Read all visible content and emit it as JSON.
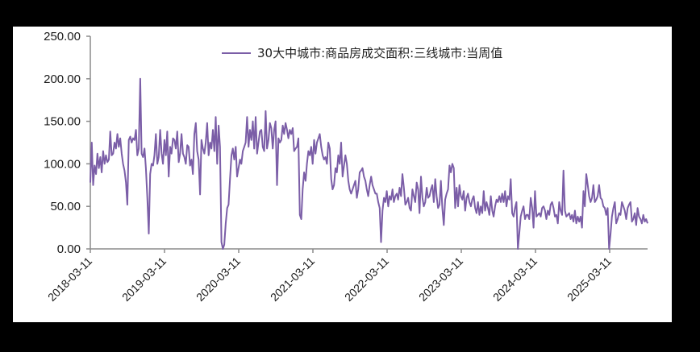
{
  "chart_data": {
    "type": "line",
    "title": "",
    "xlabel": "",
    "ylabel": "",
    "ylim": [
      0,
      250
    ],
    "y_ticks": [
      "0.00",
      "50.00",
      "100.00",
      "150.00",
      "200.00",
      "250.00"
    ],
    "x_ticks": [
      "2018-03-11",
      "2019-03-11",
      "2020-03-11",
      "2021-03-11",
      "2022-03-11",
      "2023-03-11",
      "2024-03-11",
      "2025-03-11"
    ],
    "grid": false,
    "legend_position": "top-inside",
    "series": [
      {
        "name": "30大中城市:商品房成交面积:三线城市:当周值",
        "color": "#7B5EA7",
        "frequency": "weekly",
        "start": "2018-03-11",
        "values": [
          78,
          125,
          75,
          98,
          88,
          112,
          95,
          108,
          90,
          115,
          100,
          110,
          102,
          105,
          138,
          110,
          112,
          125,
          118,
          135,
          120,
          130,
          112,
          100,
          92,
          78,
          52,
          128,
          132,
          125,
          130,
          128,
          140,
          110,
          118,
          200,
          112,
          108,
          118,
          95,
          60,
          18,
          88,
          100,
          98,
          110,
          135,
          100,
          108,
          140,
          112,
          100,
          128,
          110,
          138,
          85,
          120,
          112,
          130,
          128,
          118,
          138,
          102,
          112,
          135,
          112,
          108,
          100,
          122,
          120,
          98,
          105,
          88,
          135,
          148,
          115,
          105,
          64,
          128,
          118,
          112,
          125,
          148,
          110,
          125,
          118,
          140,
          115,
          155,
          100,
          145,
          120,
          8,
          0,
          5,
          30,
          48,
          52,
          82,
          110,
          118,
          105,
          120,
          85,
          95,
          105,
          100,
          115,
          120,
          125,
          155,
          120,
          140,
          128,
          150,
          118,
          155,
          112,
          125,
          138,
          140,
          120,
          115,
          162,
          118,
          128,
          148,
          142,
          118,
          140,
          150,
          75,
          130,
          125,
          128,
          145,
          135,
          148,
          140,
          130,
          140,
          135,
          142,
          115,
          118,
          120,
          130,
          40,
          35,
          70,
          90,
          80,
          100,
          115,
          110,
          120,
          100,
          128,
          112,
          125,
          130,
          135,
          120,
          110,
          105,
          108,
          100,
          125,
          118,
          82,
          70,
          75,
          95,
          90,
          110,
          100,
          125,
          85,
          98,
          110,
          100,
          80,
          70,
          65,
          70,
          75,
          80,
          60,
          70,
          90,
          92,
          95,
          85,
          80,
          70,
          62,
          75,
          85,
          75,
          70,
          65,
          65,
          55,
          48,
          8,
          45,
          60,
          55,
          68,
          50,
          62,
          58,
          70,
          55,
          62,
          65,
          58,
          72,
          62,
          88,
          72,
          52,
          55,
          60,
          48,
          45,
          70,
          62,
          55,
          78,
          70,
          42,
          85,
          60,
          50,
          55,
          72,
          60,
          62,
          70,
          75,
          55,
          82,
          62,
          48,
          52,
          80,
          48,
          28,
          58,
          65,
          70,
          98,
          90,
          100,
          95,
          48,
          72,
          50,
          75,
          62,
          58,
          68,
          45,
          60,
          65,
          55,
          50,
          58,
          62,
          48,
          42,
          55,
          40,
          50,
          42,
          68,
          45,
          55,
          48,
          40,
          62,
          45,
          38,
          50,
          58,
          55,
          62,
          55,
          65,
          55,
          68,
          50,
          62,
          58,
          82,
          42,
          38,
          48,
          55,
          0,
          18,
          38,
          45,
          50,
          35,
          40,
          40,
          35,
          60,
          48,
          25,
          68,
          38,
          40,
          42,
          38,
          48,
          50,
          45,
          35,
          45,
          40,
          52,
          55,
          48,
          38,
          40,
          30,
          55,
          45,
          40,
          92,
          45,
          38,
          40,
          42,
          35,
          40,
          32,
          45,
          30,
          38,
          32,
          38,
          25,
          68,
          50,
          88,
          75,
          62,
          55,
          60,
          75,
          55,
          58,
          62,
          75,
          60,
          58,
          50,
          48,
          40,
          48,
          0,
          18,
          38,
          48,
          55,
          30,
          35,
          42,
          40,
          55,
          50,
          45,
          35,
          48,
          52,
          55,
          32,
          35,
          42,
          28,
          48,
          38,
          35,
          30,
          40,
          32,
          35,
          30
        ]
      }
    ]
  }
}
